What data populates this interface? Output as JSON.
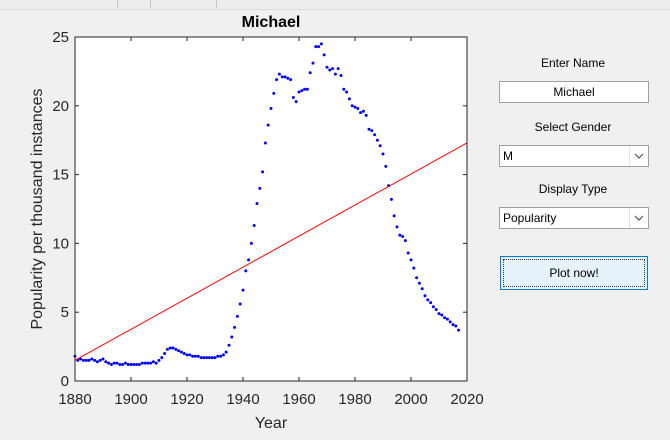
{
  "controls": {
    "name_label": "Enter Name",
    "name_value": "Michael",
    "gender_label": "Select Gender",
    "gender_value": "M",
    "display_label": "Display  Type",
    "display_value": "Popularity",
    "plot_button": "Plot now!"
  },
  "colors": {
    "points": "#0000ff",
    "trend": "#ff0000",
    "button_bg": "#e5f1fb",
    "button_border": "#0078d7"
  },
  "chart_data": {
    "type": "scatter",
    "title": "Michael",
    "xlabel": "Year",
    "ylabel": "Popularity per thousand instances",
    "xlim": [
      1880,
      2020
    ],
    "ylim": [
      0,
      25
    ],
    "xticks": [
      "1880",
      "1900",
      "1920",
      "1940",
      "1960",
      "1980",
      "2000",
      "2020"
    ],
    "yticks": [
      "0",
      "5",
      "10",
      "15",
      "20",
      "25"
    ],
    "series": [
      {
        "x": [
          1880,
          1881,
          1882,
          1883,
          1884,
          1885,
          1886,
          1887,
          1888,
          1889,
          1890,
          1891,
          1892,
          1893,
          1894,
          1895,
          1896,
          1897,
          1898,
          1899,
          1900,
          1901,
          1902,
          1903,
          1904,
          1905,
          1906,
          1907,
          1908,
          1909,
          1910,
          1911,
          1912,
          1913,
          1914,
          1915,
          1916,
          1917,
          1918,
          1919,
          1920,
          1921,
          1922,
          1923,
          1924,
          1925,
          1926,
          1927,
          1928,
          1929,
          1930,
          1931,
          1932,
          1933,
          1934,
          1935,
          1936,
          1937,
          1938,
          1939,
          1940,
          1941,
          1942,
          1943,
          1944,
          1945,
          1946,
          1947,
          1948,
          1949,
          1950,
          1951,
          1952,
          1953,
          1954,
          1955,
          1956,
          1957,
          1958,
          1959,
          1960,
          1961,
          1962,
          1963,
          1964,
          1965,
          1966,
          1967,
          1968,
          1969,
          1970,
          1971,
          1972,
          1973,
          1974,
          1975,
          1976,
          1977,
          1978,
          1979,
          1980,
          1981,
          1982,
          1983,
          1984,
          1985,
          1986,
          1987,
          1988,
          1989,
          1990,
          1991,
          1992,
          1993,
          1994,
          1995,
          1996,
          1997,
          1998,
          1999,
          2000,
          2001,
          2002,
          2003,
          2004,
          2005,
          2006,
          2007,
          2008,
          2009,
          2010,
          2011,
          2012,
          2013,
          2014,
          2015,
          2016,
          2017
        ],
        "y": [
          1.8,
          1.5,
          1.6,
          1.5,
          1.5,
          1.5,
          1.6,
          1.5,
          1.4,
          1.5,
          1.6,
          1.4,
          1.3,
          1.2,
          1.3,
          1.3,
          1.2,
          1.2,
          1.3,
          1.2,
          1.2,
          1.2,
          1.2,
          1.2,
          1.3,
          1.3,
          1.3,
          1.3,
          1.4,
          1.3,
          1.5,
          1.7,
          2.0,
          2.3,
          2.4,
          2.4,
          2.3,
          2.2,
          2.1,
          2.0,
          1.9,
          1.9,
          1.8,
          1.8,
          1.8,
          1.7,
          1.7,
          1.7,
          1.7,
          1.7,
          1.7,
          1.8,
          1.8,
          1.9,
          2.1,
          2.6,
          3.2,
          3.9,
          4.7,
          5.6,
          6.6,
          8.0,
          8.8,
          10.0,
          11.3,
          12.9,
          14.0,
          15.2,
          17.3,
          18.6,
          19.8,
          20.9,
          21.9,
          22.3,
          22.1,
          22.1,
          22.0,
          21.9,
          20.6,
          20.3,
          21.0,
          21.1,
          21.2,
          21.2,
          22.4,
          23.1,
          24.3,
          24.3,
          24.5,
          23.7,
          22.8,
          22.6,
          22.7,
          22.3,
          22.7,
          22.2,
          21.2,
          21.0,
          20.5,
          20.0,
          19.9,
          19.8,
          19.5,
          19.6,
          19.3,
          18.3,
          18.2,
          17.9,
          17.5,
          17.1,
          16.5,
          15.6,
          14.2,
          13.2,
          12.0,
          11.2,
          10.6,
          10.5,
          10.2,
          9.3,
          8.8,
          8.2,
          7.5,
          7.1,
          6.7,
          6.2,
          5.9,
          5.7,
          5.4,
          5.2,
          4.9,
          4.8,
          4.6,
          4.5,
          4.3,
          4.1,
          4.0,
          3.7
        ]
      }
    ],
    "trend_line": {
      "x": [
        1880,
        2020
      ],
      "y": [
        1.5,
        17.3
      ]
    }
  }
}
